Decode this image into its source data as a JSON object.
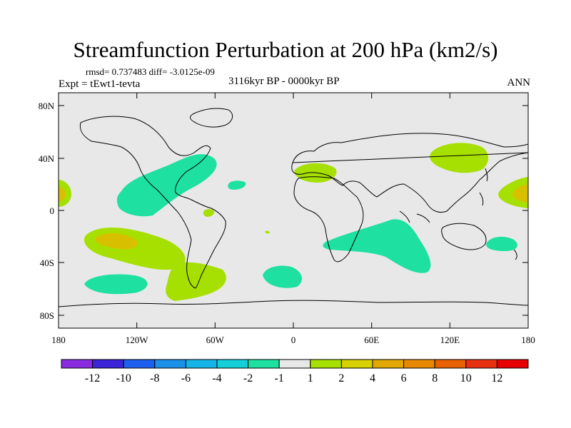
{
  "title": "Streamfunction Perturbation at 200 hPa (km2/s)",
  "stats": "rmsd= 0.737483 diff= -3.0125e-09",
  "experiment": "Expt = tEwt1-tevta",
  "period": "3116kyr BP - 0000kyr BP",
  "season": "ANN",
  "lat_labels": [
    "80N",
    "40N",
    "0",
    "40S",
    "80S"
  ],
  "lon_labels": [
    "180",
    "120W",
    "60W",
    "0",
    "60E",
    "120E",
    "180"
  ],
  "colorbar": {
    "labels": [
      "-12",
      "-10",
      "-8",
      "-6",
      "-4",
      "-2",
      "-1",
      "1",
      "2",
      "4",
      "6",
      "8",
      "10",
      "12"
    ],
    "colors": [
      "#8a2be2",
      "#3c24d8",
      "#1e5ff0",
      "#1c8fe8",
      "#15b4e6",
      "#12cfd8",
      "#1ee0a0",
      "#e8e8e8",
      "#a6e000",
      "#d8d000",
      "#e0a800",
      "#e88800",
      "#e86000",
      "#e83010",
      "#e80000"
    ]
  },
  "colors": {
    "background": "#e8e8e8",
    "coast": "#000000"
  }
}
